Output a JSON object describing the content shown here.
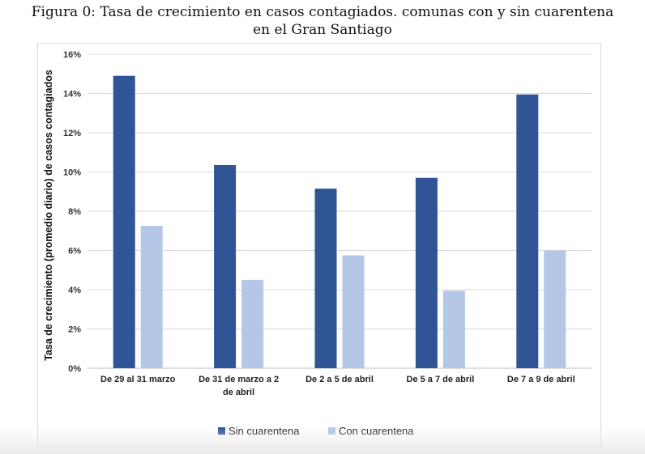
{
  "figure": {
    "caption_line1": "Figura 0: Tasa de crecimiento en casos contagiados. comunas con y sin cuarentena",
    "caption_line2": "en el Gran Santiago"
  },
  "chart_data": {
    "type": "bar",
    "ylabel": "Tasa de crecimiento (promedio diario) de casos contagiados",
    "ylim": [
      0,
      16
    ],
    "yticks": [
      "0%",
      "2%",
      "4%",
      "6%",
      "8%",
      "10%",
      "12%",
      "14%",
      "16%"
    ],
    "ytick_values": [
      0,
      2,
      4,
      6,
      8,
      10,
      12,
      14,
      16
    ],
    "categories": [
      [
        "De 29 al 31 marzo"
      ],
      [
        "De 31 de marzo a 2",
        "de abril"
      ],
      [
        "De 2 a 5 de abril"
      ],
      [
        "De 5 a 7 de abril"
      ],
      [
        "De 7 a 9 de abril"
      ]
    ],
    "series": [
      {
        "name": "Sin cuarentena",
        "color": "#2F5597",
        "values": [
          14.9,
          10.35,
          9.15,
          9.7,
          13.95
        ]
      },
      {
        "name": "Con cuarentena",
        "color": "#B4C7E7",
        "values": [
          7.25,
          4.5,
          5.75,
          3.95,
          6.0
        ]
      }
    ],
    "grid": true,
    "legend": "bottom"
  }
}
